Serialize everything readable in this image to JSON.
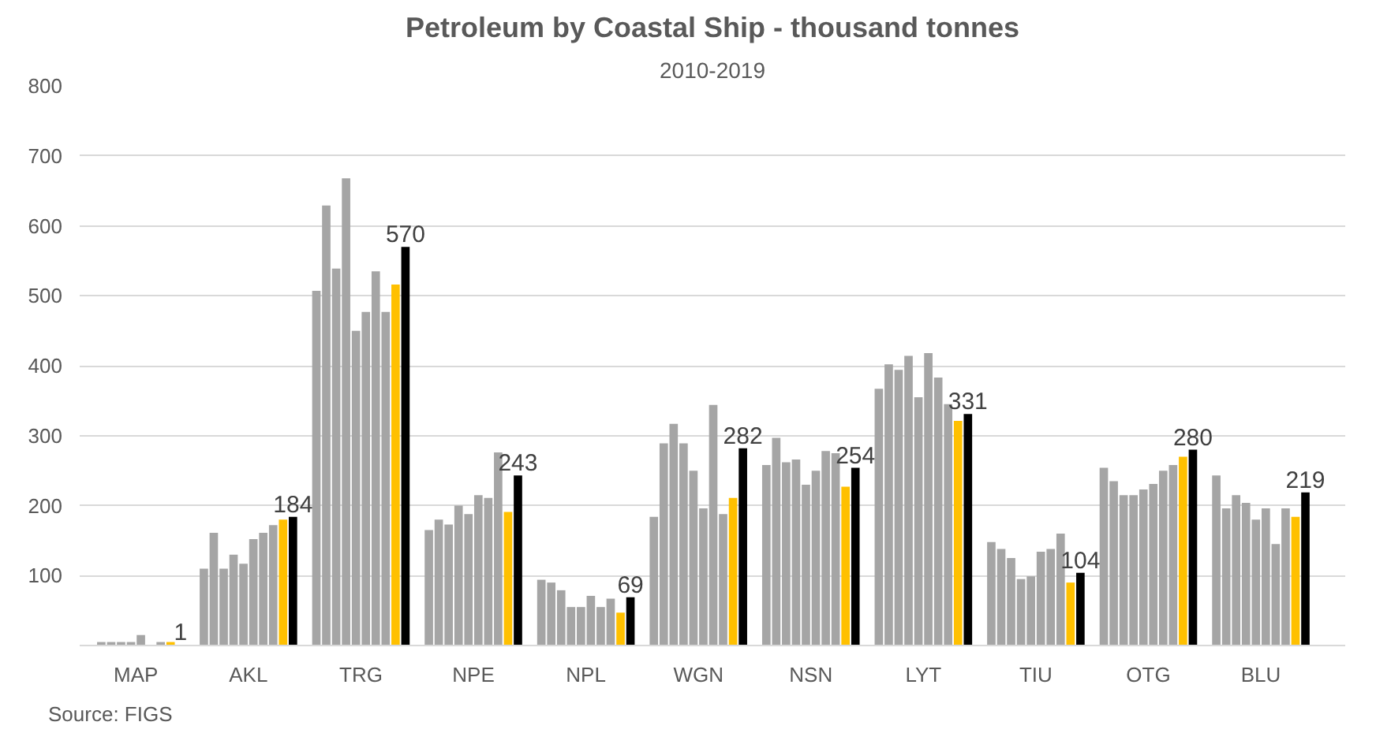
{
  "chart_data": {
    "type": "bar",
    "title": "Petroleum by Coastal Ship - thousand tonnes",
    "subtitle": "2010-2019",
    "categories": [
      "MAP",
      "AKL",
      "TRG",
      "NPE",
      "NPL",
      "WGN",
      "NSN",
      "LYT",
      "TIU",
      "OTG",
      "BLU"
    ],
    "series": [
      {
        "color": "#a5a5a5",
        "values": [
          null,
          110,
          507,
          165,
          94,
          184,
          258,
          367,
          148,
          254,
          243
        ]
      },
      {
        "color": "#a5a5a5",
        "values": [
          5,
          161,
          629,
          180,
          90,
          289,
          297,
          402,
          138,
          235,
          196
        ]
      },
      {
        "color": "#a5a5a5",
        "values": [
          5,
          110,
          539,
          173,
          79,
          317,
          262,
          394,
          125,
          215,
          215
        ]
      },
      {
        "color": "#a5a5a5",
        "values": [
          5,
          130,
          668,
          200,
          55,
          289,
          266,
          414,
          95,
          215,
          204
        ]
      },
      {
        "color": "#a5a5a5",
        "values": [
          5,
          117,
          450,
          188,
          55,
          250,
          230,
          355,
          99,
          223,
          180
        ]
      },
      {
        "color": "#a5a5a5",
        "values": [
          15,
          152,
          477,
          215,
          71,
          196,
          250,
          418,
          134,
          231,
          196
        ]
      },
      {
        "color": "#a5a5a5",
        "values": [
          null,
          161,
          535,
          211,
          55,
          344,
          278,
          383,
          138,
          250,
          145
        ]
      },
      {
        "color": "#a5a5a5",
        "values": [
          5,
          172,
          477,
          276,
          67,
          188,
          275,
          345,
          160,
          258,
          196
        ]
      },
      {
        "color": "#ffc000",
        "values": [
          5,
          180,
          516,
          191,
          47,
          211,
          227,
          321,
          90,
          270,
          184
        ]
      },
      {
        "color": "#000000",
        "values": [
          1,
          184,
          570,
          243,
          69,
          282,
          254,
          331,
          104,
          280,
          219
        ],
        "value_labels": [
          "1",
          "184",
          "570",
          "243",
          "69",
          "282",
          "254",
          "331",
          "104",
          "280",
          "219"
        ]
      }
    ],
    "ylim": [
      0,
      800
    ],
    "yticks": [
      100,
      200,
      300,
      400,
      500,
      600,
      700,
      800
    ],
    "grid": "y",
    "annotations": [
      "Source: FIGS"
    ]
  }
}
